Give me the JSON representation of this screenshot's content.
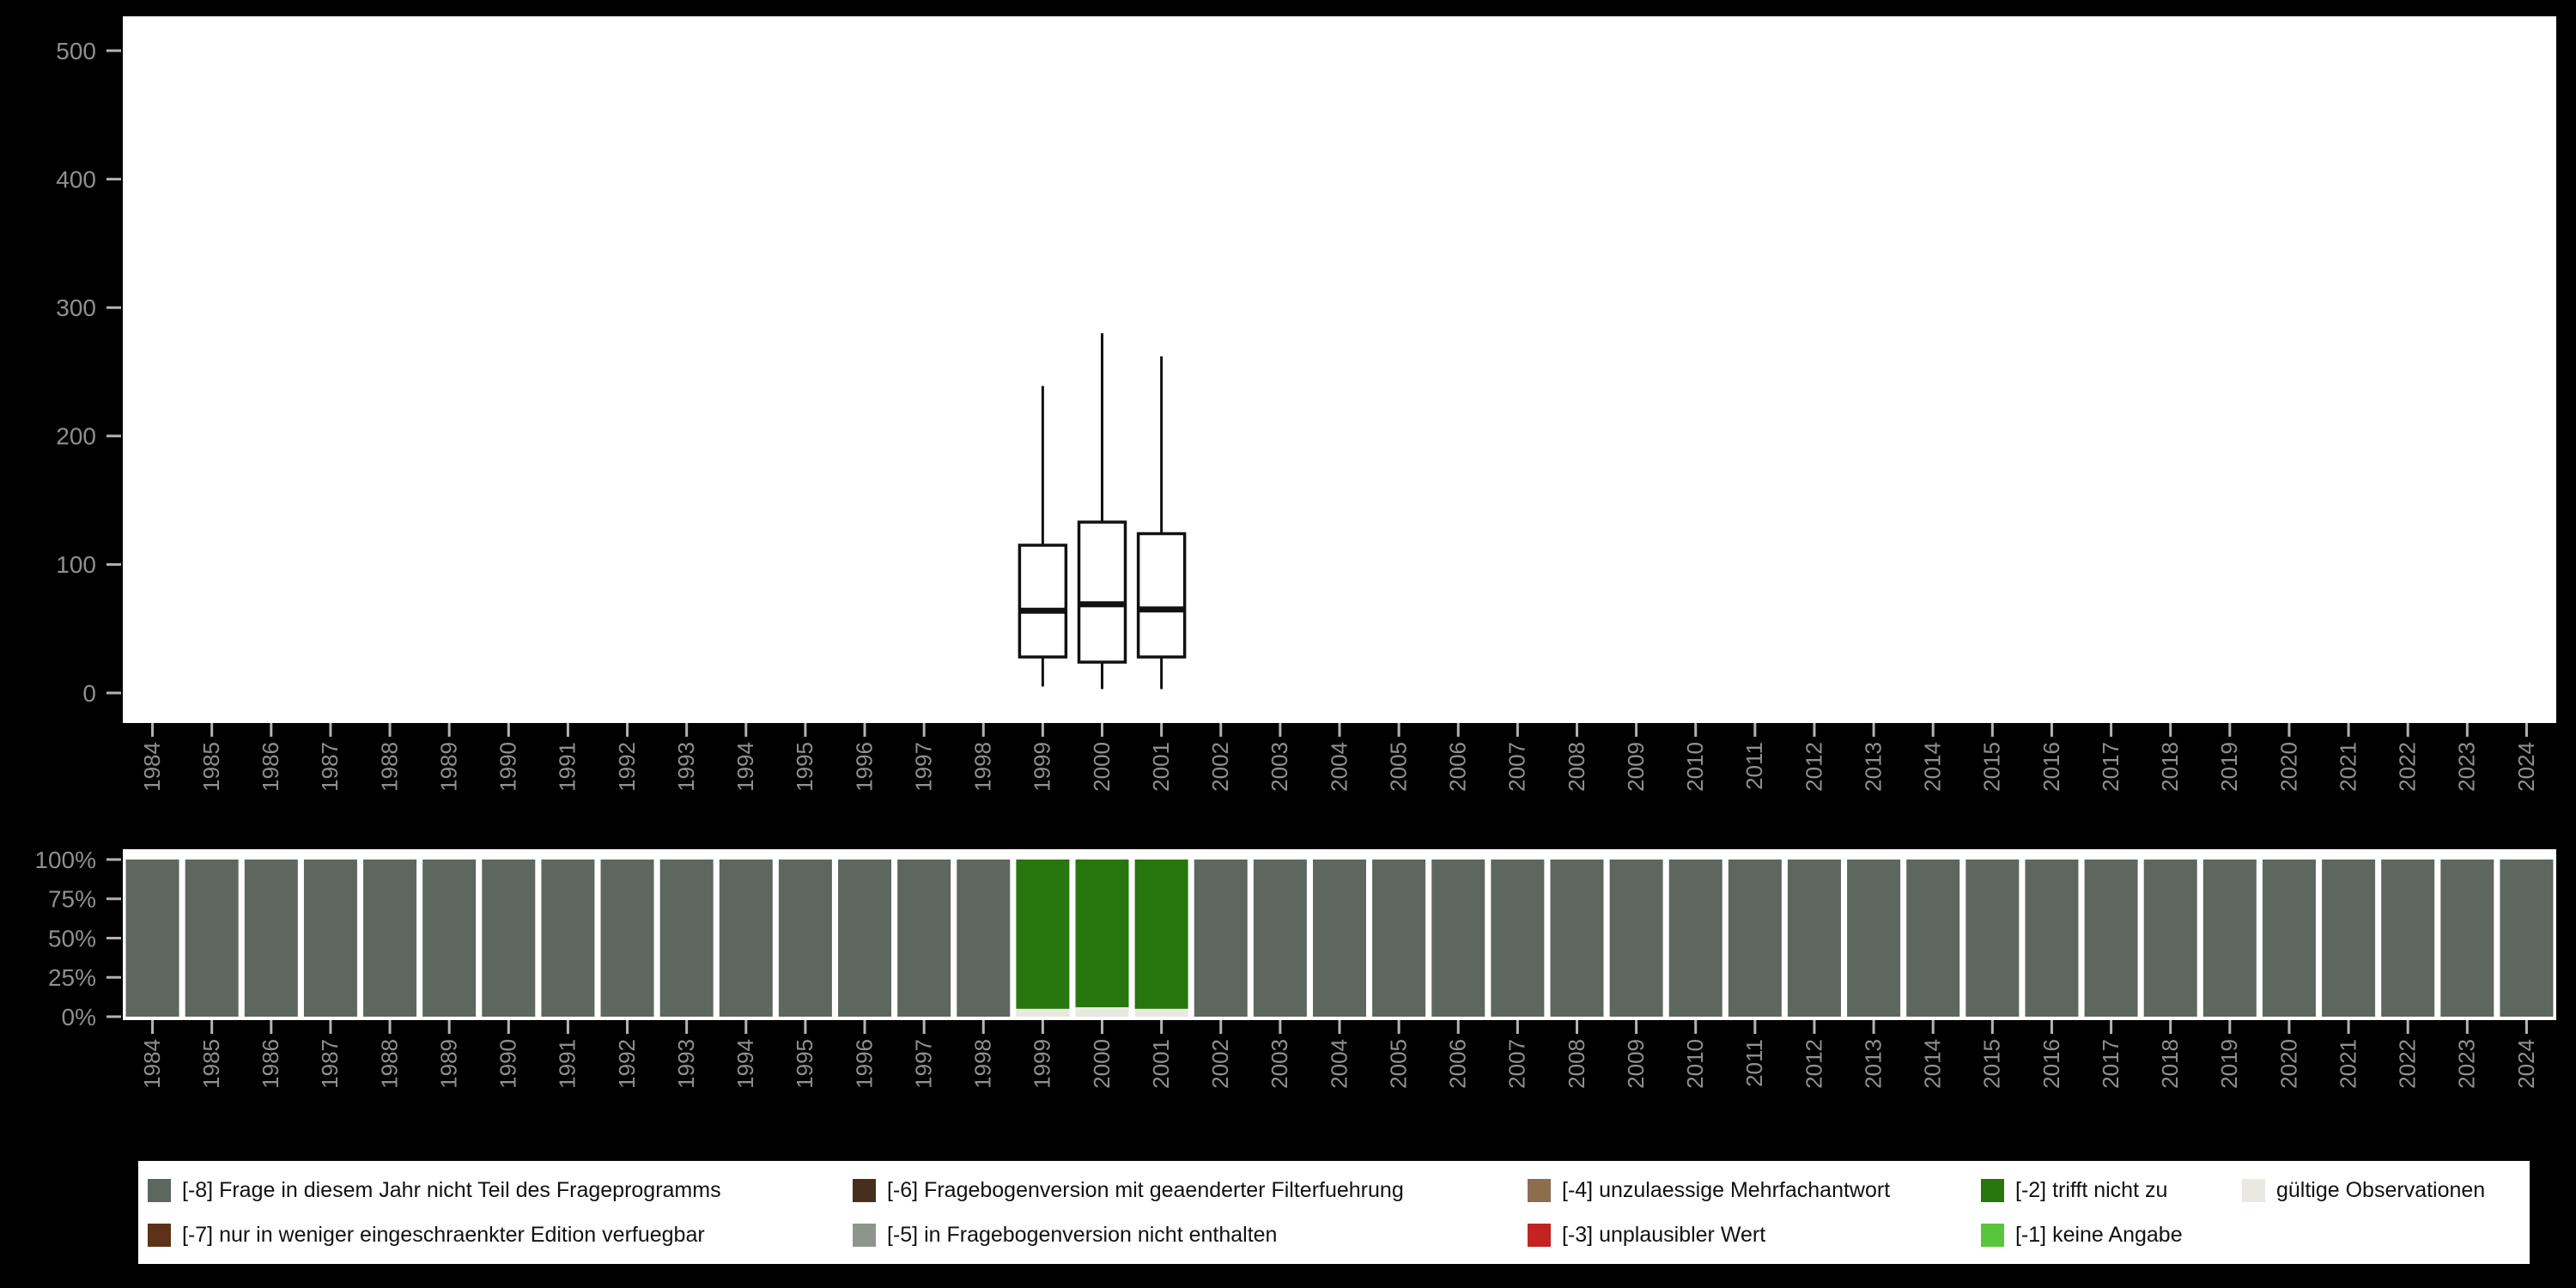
{
  "colors": {
    "background": "#000000",
    "panel": "#ffffff",
    "axis_label": "#8f8f8f",
    "tick": "#b3b3b3",
    "box_stroke": "#111111",
    "missing_8": "#5d675f",
    "missing_7": "#5c3317",
    "missing_6": "#46301c",
    "missing_5": "#8d958d",
    "missing_4": "#8c6d4e",
    "missing_3": "#c32323",
    "missing_2": "#27760e",
    "missing_1": "#57c63d",
    "valid": "#e9e9e2"
  },
  "chart_data": [
    {
      "type": "boxplot",
      "title": "",
      "xlabel": "",
      "ylabel": "",
      "ylim": [
        0,
        500
      ],
      "yticks": [
        0,
        100,
        200,
        300,
        400,
        500
      ],
      "grid": false,
      "categories": [
        "1984",
        "1985",
        "1986",
        "1987",
        "1988",
        "1989",
        "1990",
        "1991",
        "1992",
        "1993",
        "1994",
        "1995",
        "1996",
        "1997",
        "1998",
        "1999",
        "2000",
        "2001",
        "2002",
        "2003",
        "2004",
        "2005",
        "2006",
        "2007",
        "2008",
        "2009",
        "2010",
        "2011",
        "2012",
        "2013",
        "2014",
        "2015",
        "2016",
        "2017",
        "2018",
        "2019",
        "2020",
        "2021",
        "2022",
        "2023",
        "2024"
      ],
      "boxes": [
        {
          "category": "1999",
          "min": 5,
          "q1": 28,
          "median": 64,
          "q3": 115,
          "max": 239
        },
        {
          "category": "2000",
          "min": 3,
          "q1": 24,
          "median": 69,
          "q3": 133,
          "max": 280
        },
        {
          "category": "2001",
          "min": 3,
          "q1": 28,
          "median": 65,
          "q3": 124,
          "max": 262
        }
      ]
    },
    {
      "type": "bar",
      "stacked": true,
      "title": "",
      "xlabel": "",
      "ylabel": "",
      "ylim": [
        0,
        100
      ],
      "ytick_values": [
        0,
        25,
        50,
        75,
        100
      ],
      "ytick_labels": [
        "0%",
        "25%",
        "50%",
        "75%",
        "100%"
      ],
      "categories": [
        "1984",
        "1985",
        "1986",
        "1987",
        "1988",
        "1989",
        "1990",
        "1991",
        "1992",
        "1993",
        "1994",
        "1995",
        "1996",
        "1997",
        "1998",
        "1999",
        "2000",
        "2001",
        "2002",
        "2003",
        "2004",
        "2005",
        "2006",
        "2007",
        "2008",
        "2009",
        "2010",
        "2011",
        "2012",
        "2013",
        "2014",
        "2015",
        "2016",
        "2017",
        "2018",
        "2019",
        "2020",
        "2021",
        "2022",
        "2023",
        "2024"
      ],
      "series": [
        {
          "name": "gültige Observationen",
          "color_key": "valid",
          "values": [
            0,
            0,
            0,
            0,
            0,
            0,
            0,
            0,
            0,
            0,
            0,
            0,
            0,
            0,
            0,
            5,
            6,
            5,
            0,
            0,
            0,
            0,
            0,
            0,
            0,
            0,
            0,
            0,
            0,
            0,
            0,
            0,
            0,
            0,
            0,
            0,
            0,
            0,
            0,
            0,
            0
          ]
        },
        {
          "name": "[-2] trifft nicht zu",
          "color_key": "missing_2",
          "values": [
            0,
            0,
            0,
            0,
            0,
            0,
            0,
            0,
            0,
            0,
            0,
            0,
            0,
            0,
            0,
            95,
            94,
            95,
            0,
            0,
            0,
            0,
            0,
            0,
            0,
            0,
            0,
            0,
            0,
            0,
            0,
            0,
            0,
            0,
            0,
            0,
            0,
            0,
            0,
            0,
            0
          ]
        },
        {
          "name": "[-8] Frage in diesem Jahr nicht Teil des Frageprogramms",
          "color_key": "missing_8",
          "values": [
            100,
            100,
            100,
            100,
            100,
            100,
            100,
            100,
            100,
            100,
            100,
            100,
            100,
            100,
            100,
            0,
            0,
            0,
            100,
            100,
            100,
            100,
            100,
            100,
            100,
            100,
            100,
            100,
            100,
            100,
            100,
            100,
            100,
            100,
            100,
            100,
            100,
            100,
            100,
            100,
            100
          ]
        }
      ],
      "legend_position": "bottom"
    }
  ],
  "legend": {
    "rows": [
      [
        {
          "label": "[-8] Frage in diesem Jahr nicht Teil des Frageprogramms",
          "color_key": "missing_8"
        },
        {
          "label": "[-6] Fragebogenversion mit geaenderter Filterfuehrung",
          "color_key": "missing_6"
        },
        {
          "label": "[-4] unzulaessige Mehrfachantwort",
          "color_key": "missing_4"
        },
        {
          "label": "[-2] trifft nicht zu",
          "color_key": "missing_2"
        },
        {
          "label": "gültige Observationen",
          "color_key": "valid"
        }
      ],
      [
        {
          "label": "[-7] nur in weniger eingeschraenkter Edition verfuegbar",
          "color_key": "missing_7"
        },
        {
          "label": "[-5] in Fragebogenversion nicht enthalten",
          "color_key": "missing_5"
        },
        {
          "label": "[-3] unplausibler Wert",
          "color_key": "missing_3"
        },
        {
          "label": "[-1] keine Angabe",
          "color_key": "missing_1"
        }
      ]
    ]
  }
}
